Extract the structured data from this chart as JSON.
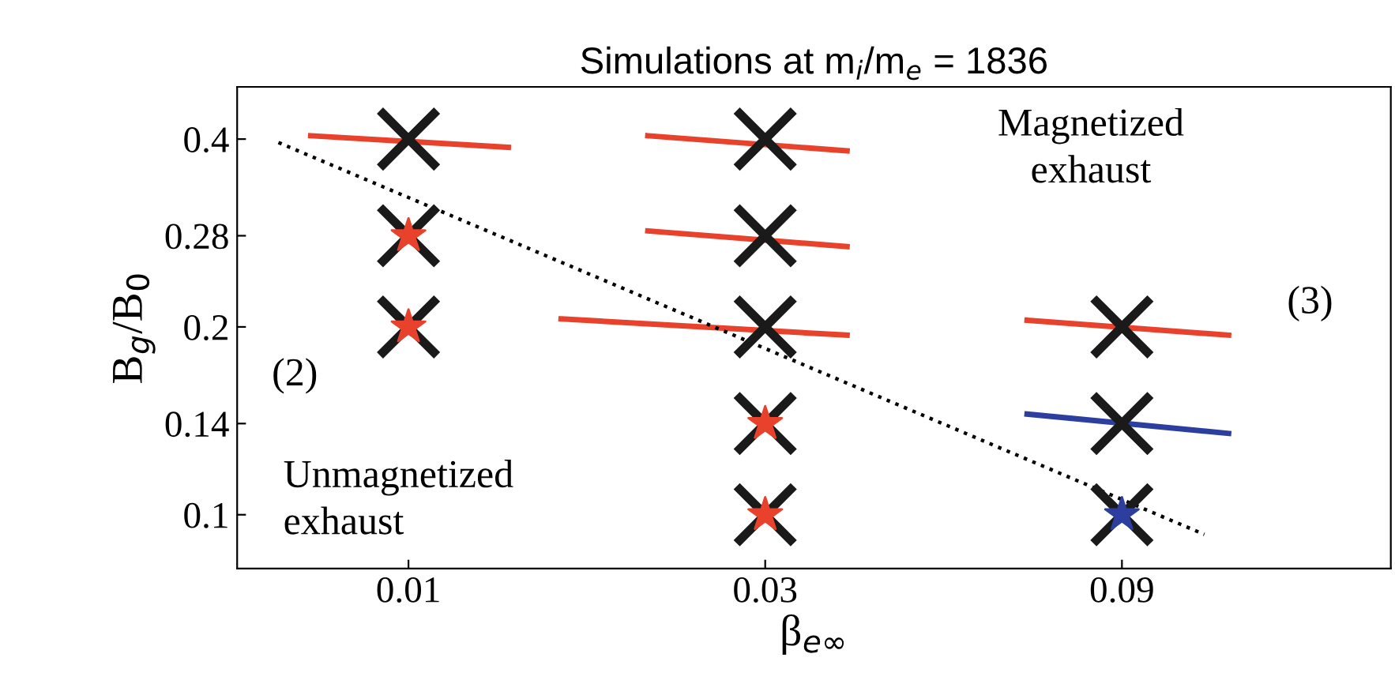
{
  "chart_data": {
    "type": "scatter",
    "title": "Simulations at m$_{i}$/m$_{e}$ = 1836",
    "xlabel": "β$_{e∞}$",
    "ylabel": "B$_{g}$/B$_{0}$",
    "log": "xy",
    "xlim": [
      0.0059,
      0.206
    ],
    "ylim": [
      0.082,
      0.485
    ],
    "xticks": [
      0.01,
      0.03,
      0.09
    ],
    "yticks": [
      0.1,
      0.14,
      0.2,
      0.28,
      0.4
    ],
    "grid": false,
    "legend": false,
    "annotations": [
      "Magnetized\nexhaust",
      "(3)",
      "(2)",
      "Unmagnetized\nexhaust"
    ],
    "series": [
      {
        "type": "line",
        "color": "#e8412c",
        "x": [
          0.0074,
          0.0136
        ],
        "values": [
          0.405,
          0.388
        ]
      },
      {
        "type": "line",
        "color": "#e8412c",
        "x": [
          0.0209,
          0.0386
        ],
        "values": [
          0.405,
          0.383
        ]
      },
      {
        "type": "line",
        "color": "#e8412c",
        "x": [
          0.0209,
          0.0386
        ],
        "values": [
          0.285,
          0.269
        ]
      },
      {
        "type": "line",
        "color": "#e8412c",
        "x": [
          0.016,
          0.0386
        ],
        "values": [
          0.206,
          0.194
        ]
      },
      {
        "type": "line",
        "color": "#e8412c",
        "x": [
          0.0672,
          0.125
        ],
        "values": [
          0.205,
          0.194
        ]
      },
      {
        "type": "line",
        "color": "#2c3e9e",
        "x": [
          0.0672,
          0.125
        ],
        "values": [
          0.145,
          0.135
        ]
      },
      {
        "type": "line",
        "color": "#000000",
        "line_style": "dotted",
        "x": [
          0.0067,
          0.116
        ],
        "values": [
          0.395,
          0.093
        ]
      },
      {
        "type": "scatter",
        "color": "#1a1a1a",
        "marker": "cross",
        "x": [
          0.01,
          0.01,
          0.01,
          0.03,
          0.03,
          0.03,
          0.03,
          0.03,
          0.09,
          0.09,
          0.09
        ],
        "values": [
          0.4,
          0.28,
          0.2,
          0.4,
          0.28,
          0.2,
          0.14,
          0.1,
          0.2,
          0.14,
          0.1
        ]
      },
      {
        "type": "scatter",
        "color": "#e8412c",
        "marker": "star",
        "x": [
          0.01,
          0.01,
          0.03,
          0.03
        ],
        "values": [
          0.28,
          0.2,
          0.14,
          0.1
        ]
      },
      {
        "type": "scatter",
        "color": "#2c3e9e",
        "marker": "star",
        "x": [
          0.09
        ],
        "values": [
          0.1
        ]
      }
    ]
  }
}
